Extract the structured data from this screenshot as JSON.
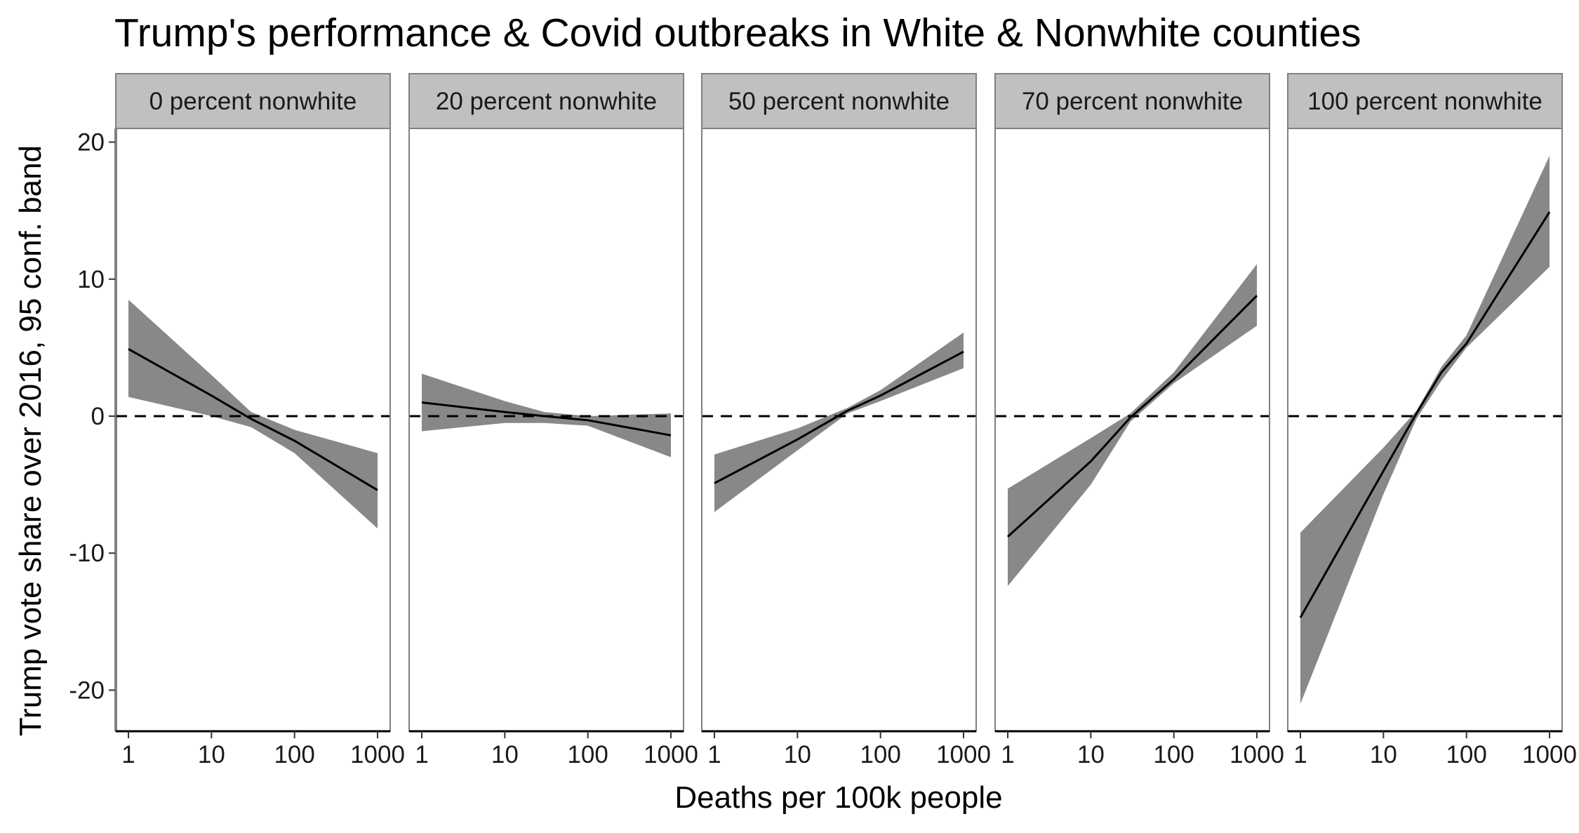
{
  "chart_data": {
    "type": "line",
    "title": "Trump's performance & Covid outbreaks in White & Nonwhite counties",
    "xlabel": "Deaths per 100k people",
    "ylabel": "Trump vote share over 2016, 95 conf. band",
    "x_scale": "log10",
    "xlim": [
      1,
      1000
    ],
    "ylim": [
      -23,
      21
    ],
    "x_ticks": [
      1,
      10,
      100,
      1000
    ],
    "x_tick_labels": [
      "1",
      "10",
      "100",
      "1000"
    ],
    "y_ticks": [
      -20,
      -10,
      0,
      10,
      20
    ],
    "y_tick_labels": [
      "-20",
      "-10",
      "0",
      "10",
      "20"
    ],
    "reference_line": {
      "y": 0,
      "style": "dashed"
    },
    "colors": {
      "line": "#000000",
      "band": "#888888",
      "strip": "#c0c0c0",
      "panel_border": "#808080"
    },
    "panels": [
      {
        "label": "0 percent nonwhite",
        "x": [
          1,
          10,
          30,
          100,
          1000
        ],
        "y": [
          4.9,
          1.5,
          -0.2,
          -1.8,
          -5.4
        ],
        "lower": [
          1.4,
          0.0,
          -0.8,
          -2.7,
          -8.2
        ],
        "upper": [
          8.5,
          3.0,
          0.3,
          -1.0,
          -2.7
        ]
      },
      {
        "label": "20 percent nonwhite",
        "x": [
          1,
          10,
          30,
          100,
          1000
        ],
        "y": [
          1.0,
          0.3,
          0.0,
          -0.3,
          -1.4
        ],
        "lower": [
          -1.1,
          -0.5,
          -0.5,
          -0.7,
          -3.0
        ],
        "upper": [
          3.1,
          1.1,
          0.3,
          0.0,
          0.2
        ]
      },
      {
        "label": "50 percent nonwhite",
        "x": [
          1,
          10,
          40,
          100,
          1000
        ],
        "y": [
          -4.9,
          -1.7,
          0.4,
          1.5,
          4.7
        ],
        "lower": [
          -7.0,
          -2.5,
          0.2,
          1.1,
          3.5
        ],
        "upper": [
          -2.8,
          -0.9,
          0.6,
          1.9,
          6.1
        ]
      },
      {
        "label": "70 percent nonwhite",
        "x": [
          1,
          10,
          30,
          100,
          1000
        ],
        "y": [
          -8.8,
          -3.3,
          -0.1,
          2.7,
          8.8
        ],
        "lower": [
          -12.4,
          -5.0,
          -0.4,
          2.4,
          6.6
        ],
        "upper": [
          -5.3,
          -1.6,
          0.2,
          3.2,
          11.1
        ]
      },
      {
        "label": "100 percent nonwhite",
        "x": [
          1,
          10,
          25,
          50,
          100,
          1000
        ],
        "y": [
          -14.7,
          -4.0,
          0.2,
          3.2,
          5.3,
          14.9
        ],
        "lower": [
          -21.0,
          -5.7,
          -0.2,
          2.6,
          5.0,
          10.9
        ],
        "upper": [
          -8.5,
          -2.3,
          0.4,
          3.6,
          5.9,
          19.0
        ]
      }
    ]
  }
}
